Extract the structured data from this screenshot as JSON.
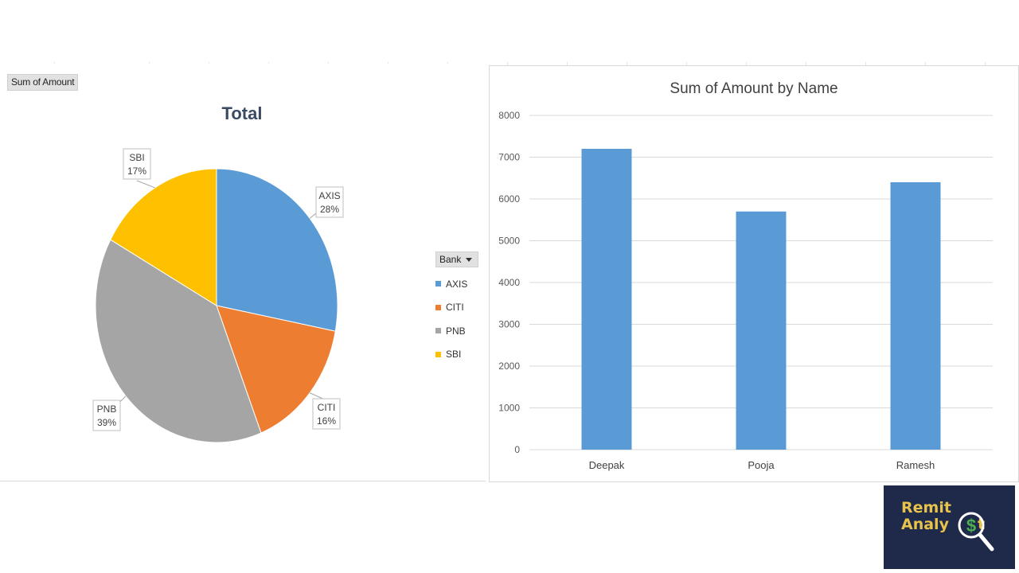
{
  "pivot": {
    "field_button": "Sum of Amount",
    "legend_field": "Bank"
  },
  "chart_data": [
    {
      "type": "pie",
      "title": "Total",
      "categories": [
        "AXIS",
        "CITI",
        "PNB",
        "SBI"
      ],
      "values": [
        28,
        16,
        39,
        17
      ],
      "labels": [
        "28%",
        "16%",
        "39%",
        "17%"
      ],
      "colors": [
        "#5b9bd5",
        "#ed7d31",
        "#a5a5a5",
        "#ffc000"
      ],
      "legend_placement": "right"
    },
    {
      "type": "bar",
      "title": "Sum of Amount by Name",
      "categories": [
        "Deepak",
        "Pooja",
        "Ramesh"
      ],
      "values": [
        7200,
        5700,
        6400
      ],
      "ylim": [
        0,
        8000
      ],
      "yticks": [
        "0",
        "1000",
        "2000",
        "3000",
        "4000",
        "5000",
        "6000",
        "7000",
        "8000"
      ],
      "grid": true,
      "color": "#5b9bd5"
    }
  ],
  "logo": {
    "line1": "Remit",
    "line2": "Analy",
    "line3": "t",
    "icon": "dollar-magnifier-icon"
  }
}
